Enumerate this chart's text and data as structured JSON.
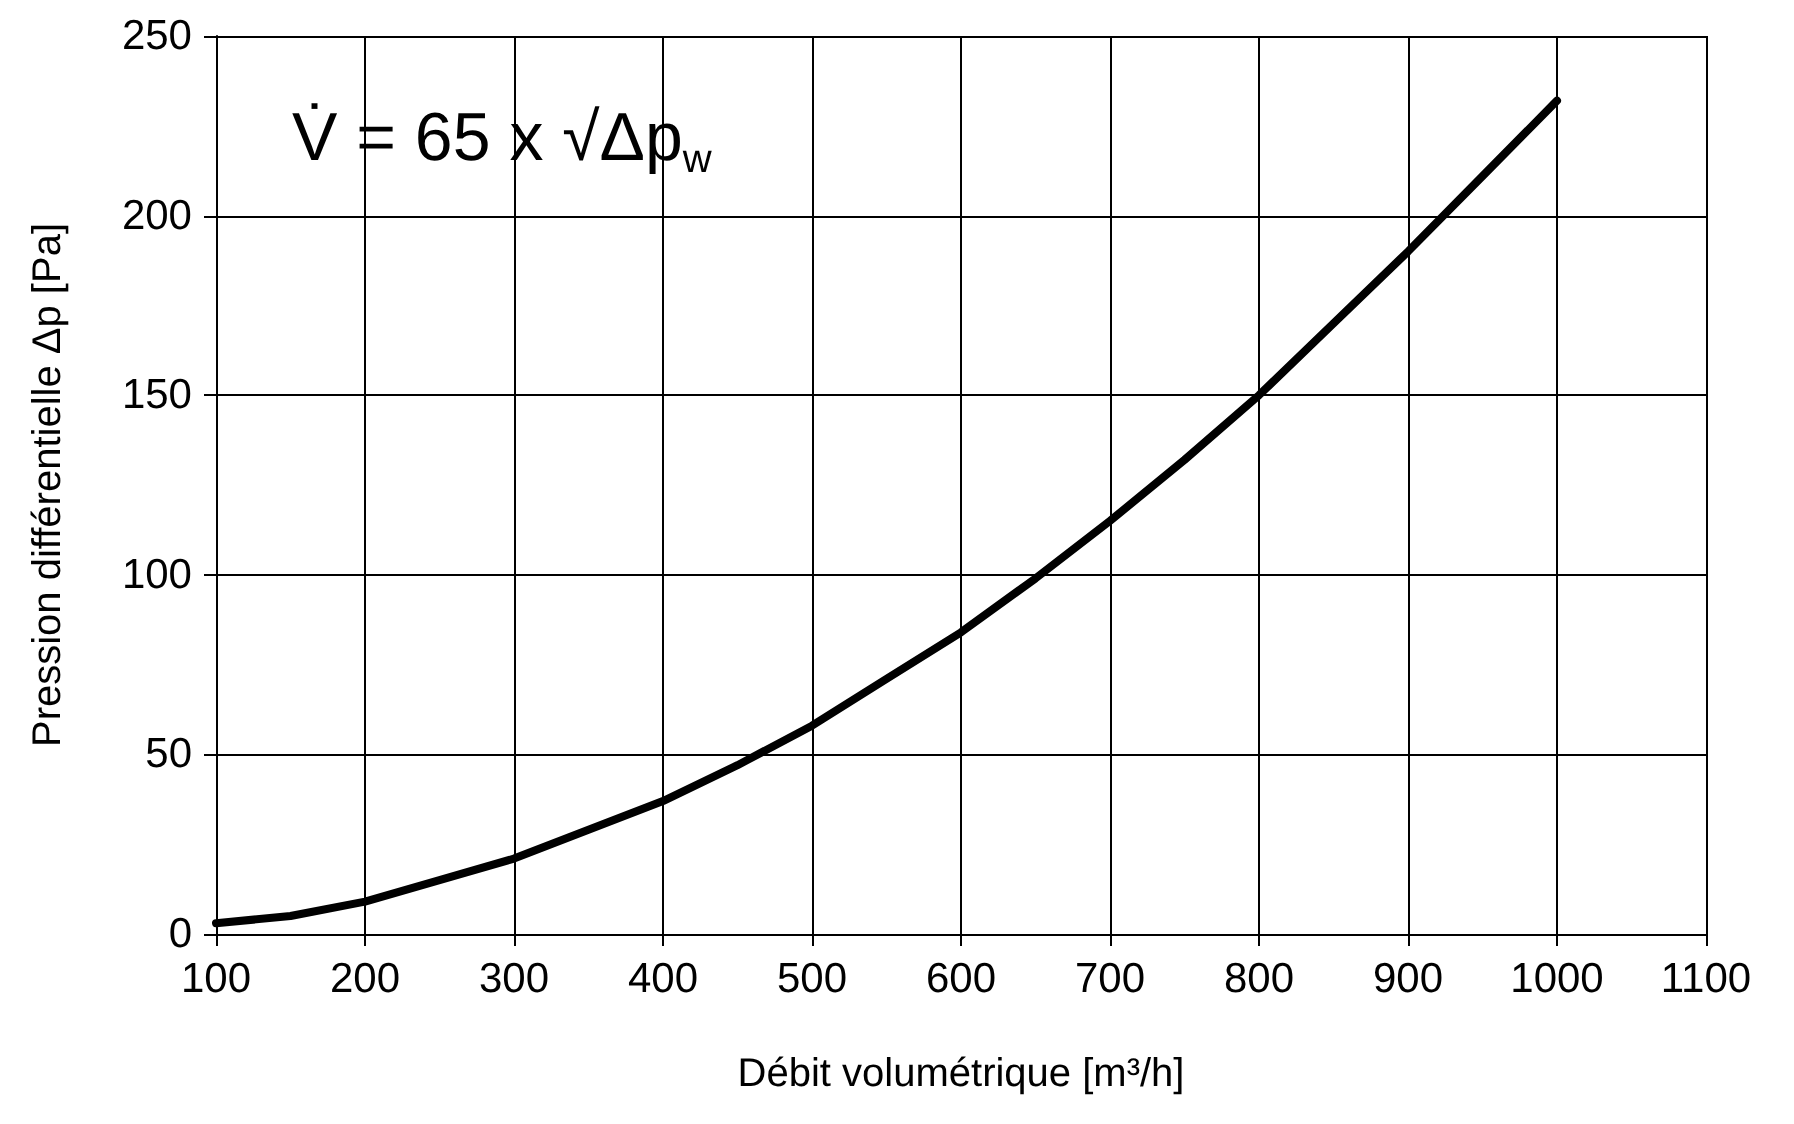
{
  "chart_data": {
    "type": "line",
    "xlabel": "Débit volumétrique [m³/h]",
    "ylabel": "Pression différentielle Δp [Pa]",
    "annotations": [
      "V̇ = 65 x √Δp$_{w}$"
    ],
    "x": [
      100,
      150,
      200,
      250,
      300,
      350,
      400,
      450,
      500,
      550,
      600,
      650,
      700,
      750,
      800,
      850,
      900,
      950,
      1000
    ],
    "series": [
      {
        "color": "#000000",
        "values": [
          3,
          5,
          9,
          15,
          21,
          29,
          37,
          47,
          58,
          71,
          84,
          99,
          115,
          132,
          150,
          170,
          190,
          211,
          232
        ]
      }
    ],
    "xlim": [
      100,
      1100
    ],
    "xticks": [
      100,
      200,
      300,
      400,
      500,
      600,
      700,
      800,
      900,
      1000,
      1100
    ],
    "ylim": [
      0,
      250
    ],
    "yticks": [
      0,
      50,
      100,
      150,
      200,
      250
    ],
    "grid": true,
    "marker": "none",
    "line_style": "solid"
  }
}
